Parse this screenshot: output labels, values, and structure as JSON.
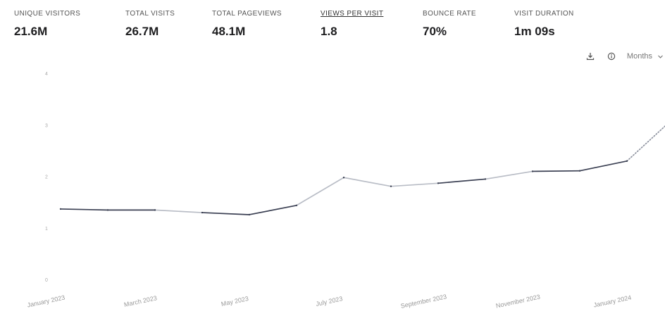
{
  "stats": [
    {
      "label": "UNIQUE VISITORS",
      "value": "21.6M"
    },
    {
      "label": "TOTAL VISITS",
      "value": "26.7M"
    },
    {
      "label": "TOTAL PAGEVIEWS",
      "value": "48.1M"
    },
    {
      "label": "VIEWS PER VISIT",
      "value": "1.8"
    },
    {
      "label": "BOUNCE RATE",
      "value": "70%"
    },
    {
      "label": "VISIT DURATION",
      "value": "1m 09s"
    }
  ],
  "toolbar": {
    "download_icon": "download-icon",
    "info_icon": "info-icon",
    "period_label": "Months",
    "chevron_icon": "chevron-down-icon"
  },
  "colors": {
    "line": "#3a3f52",
    "line_light": "#b9bdc6",
    "dotted": "#8a8f9c"
  },
  "chart_data": {
    "type": "line",
    "x": [
      "January 2023",
      "February 2023",
      "March 2023",
      "April 2023",
      "May 2023",
      "June 2023",
      "July 2023",
      "August 2023",
      "September 2023",
      "October 2023",
      "November 2023",
      "December 2023",
      "January 2024",
      "February 2024"
    ],
    "x_tick_labels": [
      "January 2023",
      "March 2023",
      "May 2023",
      "July 2023",
      "September 2023",
      "November 2023",
      "January 2024"
    ],
    "series": [
      {
        "values": [
          1.38,
          1.36,
          1.36,
          1.31,
          1.27,
          1.45,
          1.99,
          1.82,
          1.88,
          1.96,
          2.11,
          2.12,
          2.31,
          3.15
        ]
      }
    ],
    "dotted_from_index": 12,
    "ylim": [
      0,
      4
    ],
    "y_ticks": [
      0,
      1,
      2,
      3,
      4
    ],
    "y_tick_labels": [
      "0",
      "1",
      "2",
      "3",
      "4"
    ],
    "grid": false,
    "legend": "none"
  }
}
